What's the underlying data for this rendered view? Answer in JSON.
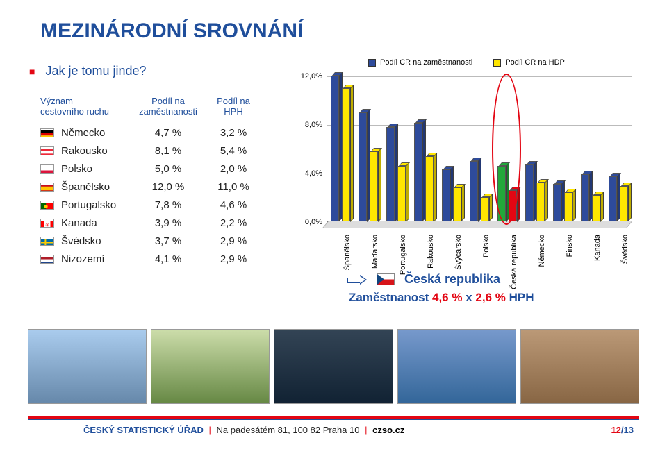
{
  "title": "MEZINÁRODNÍ SROVNÁNÍ",
  "subtitle": "Jak je tomu jinde?",
  "table": {
    "header0_line1": "Význam",
    "header0_line2": "cestovního ruchu",
    "header1_line1": "Podíl na",
    "header1_line2": "zaměstnanosti",
    "header2_line1": "Podíl na",
    "header2_line2": "HPH",
    "rows": [
      {
        "country": "Německo",
        "c1": "4,7 %",
        "c2": "3,2 %",
        "flag": "de"
      },
      {
        "country": "Rakousko",
        "c1": "8,1 %",
        "c2": "5,4 %",
        "flag": "at"
      },
      {
        "country": "Polsko",
        "c1": "5,0 %",
        "c2": "2,0 %",
        "flag": "pl"
      },
      {
        "country": "Španělsko",
        "c1": "12,0 %",
        "c2": "11,0 %",
        "flag": "es"
      },
      {
        "country": "Portugalsko",
        "c1": "7,8 %",
        "c2": "4,6 %",
        "flag": "pt"
      },
      {
        "country": "Kanada",
        "c1": "3,9 %",
        "c2": "2,2 %",
        "flag": "ca"
      },
      {
        "country": "Švédsko",
        "c1": "3,7 %",
        "c2": "2,9 %",
        "flag": "se"
      },
      {
        "country": "Nizozemí",
        "c1": "4,1 %",
        "c2": "2,9 %",
        "flag": "nl"
      }
    ]
  },
  "legend": {
    "item1": "Podíl CR na zaměstnanosti",
    "color1": "#2e4b9b",
    "item2": "Podíl CR na HDP",
    "color2": "#ffe600"
  },
  "chart": {
    "type": "bar-3d-grouped",
    "ylim": [
      0,
      12
    ],
    "ytick_step": 4,
    "yticks": [
      "0,0%",
      "4,0%",
      "8,0%",
      "12,0%"
    ],
    "bar_colors": {
      "employment": "#2e4b9b",
      "gdp": "#ffe600",
      "cz_employment": "#22a83a",
      "cz_gdp": "#e30613"
    },
    "background": "#ffffff",
    "grid_color": "#bbbbbb",
    "categories": [
      {
        "label": "Španělsko",
        "v1": 12.0,
        "v2": 11.0,
        "highlight": false
      },
      {
        "label": "Maďarsko",
        "v1": 9.0,
        "v2": 5.8,
        "highlight": false
      },
      {
        "label": "Portugalsko",
        "v1": 7.8,
        "v2": 4.6,
        "highlight": false
      },
      {
        "label": "Rakousko",
        "v1": 8.1,
        "v2": 5.4,
        "highlight": false
      },
      {
        "label": "Švýcarsko",
        "v1": 4.3,
        "v2": 2.8,
        "highlight": false
      },
      {
        "label": "Polsko",
        "v1": 5.0,
        "v2": 2.0,
        "highlight": false
      },
      {
        "label": "Česká republika",
        "v1": 4.6,
        "v2": 2.6,
        "highlight": true
      },
      {
        "label": "Německo",
        "v1": 4.7,
        "v2": 3.2,
        "highlight": false
      },
      {
        "label": "Finsko",
        "v1": 3.1,
        "v2": 2.4,
        "highlight": false
      },
      {
        "label": "Kanada",
        "v1": 3.9,
        "v2": 2.2,
        "highlight": false
      },
      {
        "label": "Švédsko",
        "v1": 3.7,
        "v2": 2.9,
        "highlight": false
      }
    ]
  },
  "summary": {
    "label": "Česká republika",
    "line_prefix": "Zaměstnanost",
    "line_v1": "4,6 %",
    "line_x": "x",
    "line_v2": "2,6 %",
    "line_suffix": "HPH"
  },
  "footer": {
    "org": "ČESKÝ STATISTICKÝ ÚŘAD",
    "addr": "Na padesátém 81, 100 82 Praha 10",
    "link": "czso.cz",
    "page_cur": "12",
    "page_tot": "/13"
  },
  "photos": [
    "",
    "",
    "",
    "",
    ""
  ]
}
